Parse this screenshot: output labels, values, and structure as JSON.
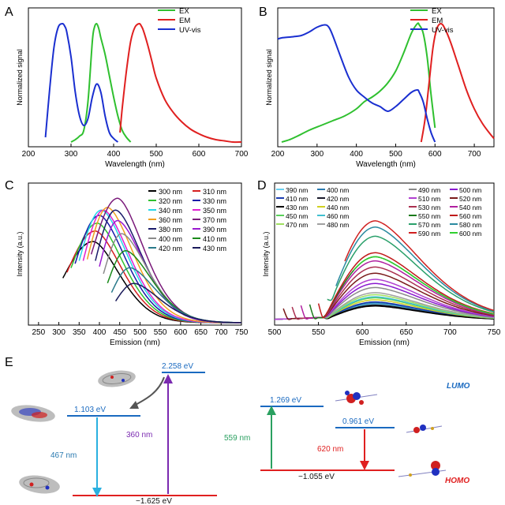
{
  "panels": {
    "A": "A",
    "B": "B",
    "C": "C",
    "D": "D",
    "E": "E"
  },
  "chart_data": [
    {
      "panel": "A",
      "type": "line",
      "xlabel": "Wavelength (nm)",
      "ylabel": "Normalized signal",
      "xlim": [
        200,
        700
      ],
      "xticks": [
        "200",
        "300",
        "400",
        "500",
        "600",
        "700"
      ],
      "series": [
        {
          "name": "EX",
          "color": "#2fc02f",
          "x": [
            300,
            310,
            320,
            330,
            340,
            350,
            355,
            360,
            365,
            370,
            380,
            390,
            400,
            410,
            420,
            430,
            440
          ],
          "y": [
            0.0,
            0.02,
            0.05,
            0.1,
            0.35,
            0.85,
            0.97,
            1.0,
            0.96,
            0.88,
            0.74,
            0.56,
            0.38,
            0.22,
            0.1,
            0.04,
            0.0
          ]
        },
        {
          "name": "EM",
          "color": "#e02020",
          "x": [
            415,
            420,
            430,
            440,
            450,
            460,
            465,
            470,
            480,
            490,
            500,
            520,
            540,
            560,
            580,
            600,
            620,
            640,
            660,
            680,
            700
          ],
          "y": [
            0.08,
            0.28,
            0.6,
            0.85,
            0.97,
            1.0,
            0.98,
            0.94,
            0.82,
            0.68,
            0.54,
            0.36,
            0.25,
            0.17,
            0.11,
            0.07,
            0.04,
            0.02,
            0.01,
            0.0,
            0.0
          ]
        },
        {
          "name": "UV-vis",
          "color": "#1a2fd0",
          "x": [
            240,
            250,
            260,
            270,
            280,
            285,
            290,
            300,
            310,
            320,
            330,
            340,
            350,
            360,
            370,
            380,
            390,
            400,
            410
          ],
          "y": [
            0.04,
            0.45,
            0.8,
            0.97,
            1.0,
            0.98,
            0.93,
            0.72,
            0.42,
            0.22,
            0.14,
            0.2,
            0.38,
            0.49,
            0.42,
            0.22,
            0.08,
            0.03,
            0.0
          ]
        }
      ]
    },
    {
      "panel": "B",
      "type": "line",
      "xlabel": "Wavelength (nm)",
      "ylabel": "Normalized signal",
      "xlim": [
        200,
        750
      ],
      "xticks": [
        "200",
        "300",
        "400",
        "500",
        "600",
        "700"
      ],
      "series": [
        {
          "name": "EX",
          "color": "#2fc02f",
          "x": [
            210,
            230,
            250,
            280,
            310,
            340,
            370,
            400,
            420,
            440,
            460,
            480,
            500,
            520,
            540,
            555,
            560,
            570,
            580,
            590,
            600
          ],
          "y": [
            0.0,
            0.02,
            0.05,
            0.1,
            0.14,
            0.18,
            0.22,
            0.28,
            0.34,
            0.38,
            0.43,
            0.5,
            0.6,
            0.75,
            0.92,
            1.0,
            0.99,
            0.92,
            0.72,
            0.4,
            0.12
          ]
        },
        {
          "name": "EM",
          "color": "#e02020",
          "x": [
            565,
            575,
            585,
            595,
            605,
            615,
            625,
            640,
            660,
            680,
            700,
            720,
            740,
            750
          ],
          "y": [
            0.0,
            0.2,
            0.5,
            0.8,
            0.96,
            1.0,
            0.96,
            0.84,
            0.64,
            0.44,
            0.28,
            0.16,
            0.07,
            0.03
          ]
        },
        {
          "name": "UV-vis",
          "color": "#1a2fd0",
          "x": [
            200,
            210,
            240,
            260,
            280,
            300,
            320,
            330,
            340,
            360,
            380,
            400,
            420,
            440,
            460,
            480,
            500,
            520,
            540,
            555,
            560,
            570,
            580,
            590,
            600
          ],
          "y": [
            0.87,
            0.88,
            0.89,
            0.9,
            0.93,
            0.97,
            0.99,
            0.97,
            0.9,
            0.72,
            0.55,
            0.44,
            0.38,
            0.33,
            0.3,
            0.26,
            0.3,
            0.36,
            0.42,
            0.44,
            0.42,
            0.34,
            0.2,
            0.08,
            0.0
          ]
        }
      ]
    },
    {
      "panel": "C",
      "type": "line",
      "xlabel": "Emission (nm)",
      "ylabel": "Intensity (a.u.)",
      "xlim": [
        225,
        750
      ],
      "xticks": [
        "250",
        "300",
        "350",
        "400",
        "450",
        "500",
        "550",
        "600",
        "650",
        "700",
        "750"
      ],
      "ymax": 1.0,
      "series": [
        {
          "name": "300 nm",
          "color": "#000000",
          "start": 310,
          "peak": 385,
          "amp": 0.62
        },
        {
          "name": "310 nm",
          "color": "#d62020",
          "start": 320,
          "peak": 390,
          "amp": 0.7
        },
        {
          "name": "320 nm",
          "color": "#2fc02f",
          "start": 330,
          "peak": 395,
          "amp": 0.76
        },
        {
          "name": "330 nm",
          "color": "#1a1aa8",
          "start": 340,
          "peak": 400,
          "amp": 0.82
        },
        {
          "name": "340 nm",
          "color": "#26d6e8",
          "start": 350,
          "peak": 405,
          "amp": 0.86
        },
        {
          "name": "350 nm",
          "color": "#e020d0",
          "start": 360,
          "peak": 410,
          "amp": 0.86
        },
        {
          "name": "360 nm",
          "color": "#f0a020",
          "start": 370,
          "peak": 420,
          "amp": 0.88
        },
        {
          "name": "370 nm",
          "color": "#7a1a7a",
          "start": 380,
          "peak": 445,
          "amp": 0.95
        },
        {
          "name": "380 nm",
          "color": "#1a1a6a",
          "start": 390,
          "peak": 440,
          "amp": 0.86
        },
        {
          "name": "390 nm",
          "color": "#9a1ad0",
          "start": 400,
          "peak": 445,
          "amp": 0.78
        },
        {
          "name": "400 nm",
          "color": "#8a8a8a",
          "start": 410,
          "peak": 455,
          "amp": 0.68
        },
        {
          "name": "410 nm",
          "color": "#1a8a1a",
          "start": 420,
          "peak": 465,
          "amp": 0.55
        },
        {
          "name": "420 nm",
          "color": "#2a7a8a",
          "start": 430,
          "peak": 475,
          "amp": 0.42
        },
        {
          "name": "430 nm",
          "color": "#1a1a5a",
          "start": 440,
          "peak": 485,
          "amp": 0.3
        }
      ]
    },
    {
      "panel": "D",
      "type": "line",
      "xlabel": "Emission (nm)",
      "ylabel": "Intensity (a.u.)",
      "xlim": [
        500,
        750
      ],
      "xticks": [
        "500",
        "550",
        "600",
        "650",
        "700",
        "750"
      ],
      "series": [
        {
          "name": "390 nm",
          "color": "#6ad0f0",
          "start": 500,
          "amp": 0.16
        },
        {
          "name": "400 nm",
          "color": "#2a7ab0",
          "start": 500,
          "amp": 0.17
        },
        {
          "name": "410 nm",
          "color": "#1a3ab0",
          "start": 500,
          "amp": 0.18
        },
        {
          "name": "420 nm",
          "color": "#1a1a2a",
          "start": 500,
          "amp": 0.15
        },
        {
          "name": "430 nm",
          "color": "#000000",
          "start": 500,
          "amp": 0.14
        },
        {
          "name": "440 nm",
          "color": "#d0d020",
          "start": 500,
          "amp": 0.2
        },
        {
          "name": "450 nm",
          "color": "#5ad05a",
          "start": 500,
          "amp": 0.22
        },
        {
          "name": "460 nm",
          "color": "#40c0d0",
          "start": 500,
          "amp": 0.23
        },
        {
          "name": "470 nm",
          "color": "#a0e060",
          "start": 500,
          "amp": 0.25
        },
        {
          "name": "480 nm",
          "color": "#a0a0a0",
          "start": 500,
          "amp": 0.27
        },
        {
          "name": "490 nm",
          "color": "#8a8a8a",
          "start": 500,
          "amp": 0.32
        },
        {
          "name": "500 nm",
          "color": "#8a1ad0",
          "start": 500,
          "amp": 0.36
        },
        {
          "name": "510 nm",
          "color": "#b040d0",
          "start": 500,
          "amp": 0.4
        },
        {
          "name": "520 nm",
          "color": "#7a1a1a",
          "start": 510,
          "amp": 0.46
        },
        {
          "name": "530 nm",
          "color": "#aa3050",
          "start": 520,
          "amp": 0.52
        },
        {
          "name": "540 nm",
          "color": "#b020a0",
          "start": 530,
          "amp": 0.58
        },
        {
          "name": "550 nm",
          "color": "#1a7a1a",
          "start": 540,
          "amp": 0.62
        },
        {
          "name": "560 nm",
          "color": "#c01a1a",
          "start": 550,
          "amp": 0.66
        },
        {
          "name": "570 nm",
          "color": "#2aa06a",
          "start": 560,
          "amp": 0.82
        },
        {
          "name": "580 nm",
          "color": "#2a8aa0",
          "start": 570,
          "amp": 0.91
        },
        {
          "name": "590 nm",
          "color": "#d02020",
          "start": 580,
          "amp": 0.97
        },
        {
          "name": "600 nm",
          "color": "#2fd02f",
          "start": 590,
          "amp": 0.62
        }
      ]
    }
  ],
  "diagram_e": {
    "left": {
      "top_level": "2.258 eV",
      "mid_level": "1.103 eV",
      "bottom_level": "−1.625 eV",
      "arrow_up_label": "360 nm",
      "arrow_down_label": "467 nm"
    },
    "right": {
      "top_level": "1.269 eV",
      "mid_level": "0.961 eV",
      "bottom_level": "−1.055 eV",
      "arrow_up_label": "559 nm",
      "arrow_down_label": "620 nm",
      "lumo": "LUMO",
      "homo": "HOMO"
    }
  }
}
